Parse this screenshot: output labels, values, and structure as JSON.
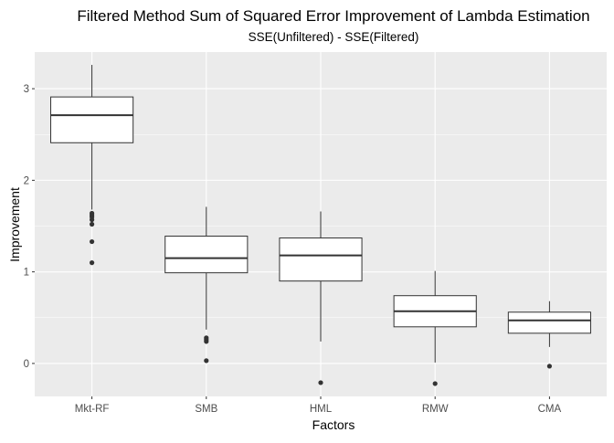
{
  "chart_data": {
    "type": "boxplot",
    "title": "Filtered Method Sum of Squared Error Improvement of Lambda Estimation",
    "subtitle": "SSE(Unfiltered) - SSE(Filtered)",
    "xlabel": "Factors",
    "ylabel": "Improvement",
    "categories": [
      "Mkt-RF",
      "SMB",
      "HML",
      "RMW",
      "CMA"
    ],
    "ylim": [
      -0.36,
      3.4
    ],
    "yticks": [
      0,
      1,
      2,
      3
    ],
    "ytick_labels": [
      "0",
      "1",
      "2",
      "3"
    ],
    "grid": true,
    "legend": "none",
    "colors": {
      "panel": "#ebebeb",
      "grid_major": "#ffffff",
      "box_fill": "#ffffff",
      "box_line": "#333333",
      "outlier": "#333333",
      "tick_text": "#4d4d4d"
    },
    "boxes": [
      {
        "category": "Mkt-RF",
        "lower_whisker": 1.68,
        "q1": 2.41,
        "median": 2.71,
        "q3": 2.91,
        "upper_whisker": 3.26,
        "outliers": [
          1.1,
          1.33,
          1.52,
          1.57,
          1.6,
          1.62,
          1.64
        ]
      },
      {
        "category": "SMB",
        "lower_whisker": 0.37,
        "q1": 0.99,
        "median": 1.15,
        "q3": 1.39,
        "upper_whisker": 1.71,
        "outliers": [
          0.03,
          0.24,
          0.26,
          0.28
        ]
      },
      {
        "category": "HML",
        "lower_whisker": 0.24,
        "q1": 0.9,
        "median": 1.18,
        "q3": 1.37,
        "upper_whisker": 1.66,
        "outliers": [
          -0.21
        ]
      },
      {
        "category": "RMW",
        "lower_whisker": 0.01,
        "q1": 0.4,
        "median": 0.57,
        "q3": 0.74,
        "upper_whisker": 1.01,
        "outliers": [
          -0.22
        ]
      },
      {
        "category": "CMA",
        "lower_whisker": 0.18,
        "q1": 0.33,
        "median": 0.47,
        "q3": 0.56,
        "upper_whisker": 0.68,
        "outliers": [
          -0.03
        ]
      }
    ]
  }
}
